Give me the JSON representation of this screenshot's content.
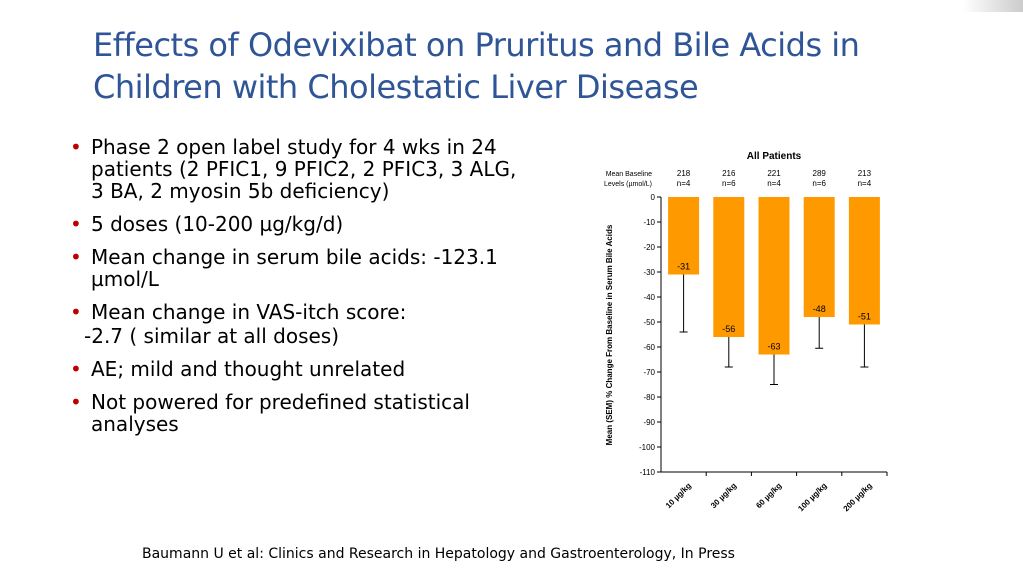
{
  "title": "Effects of Odevixibat on Pruritus and Bile Acids in Children with Cholestatic Liver Disease",
  "bullets": [
    "Phase 2 open label study for 4 wks in 24 patients (2 PFIC1, 9 PFIC2, 2 PFIC3, 3 ALG, 3 BA,  2 myosin 5b deficiency)",
    "5 doses (10-200 µg/kg/d)",
    "Mean change in serum bile acids: -123.1 µmol/L",
    "Mean change in VAS-itch score:",
    "-2.7 ( similar at all doses)",
    "AE; mild and thought unrelated",
    "Not powered for predefined statistical analyses"
  ],
  "citation": "Baumann U et al: Clinics and Research in Hepatology and Gastroenterology, In Press",
  "chart_data": {
    "type": "bar",
    "title": "All Patients",
    "baseline_label": [
      "Mean Baseline",
      "Levels (µmol/L)"
    ],
    "categories": [
      "10 µg/kg",
      "30 µg/kg",
      "60 µg/kg",
      "100 µg/kg",
      "200 µg/kg"
    ],
    "values": [
      -31,
      -56,
      -63,
      -48,
      -51
    ],
    "data_labels": [
      "-31",
      "-56",
      "-63",
      "-48",
      "-51"
    ],
    "error_low": [
      -54,
      -68,
      -75,
      -60.5,
      -68
    ],
    "baselines": [
      "218",
      "216",
      "221",
      "289",
      "213"
    ],
    "n": [
      "n=4",
      "n=6",
      "n=4",
      "n=6",
      "n=4"
    ],
    "ylabel": "Mean (SEM) % Change From Baseline in Serum Bile Acids",
    "ylim": [
      -110,
      0
    ],
    "yticks": [
      0,
      -10,
      -20,
      -30,
      -40,
      -50,
      -60,
      -70,
      -80,
      -90,
      -100,
      -110
    ],
    "bar_color": "#ff9900"
  }
}
